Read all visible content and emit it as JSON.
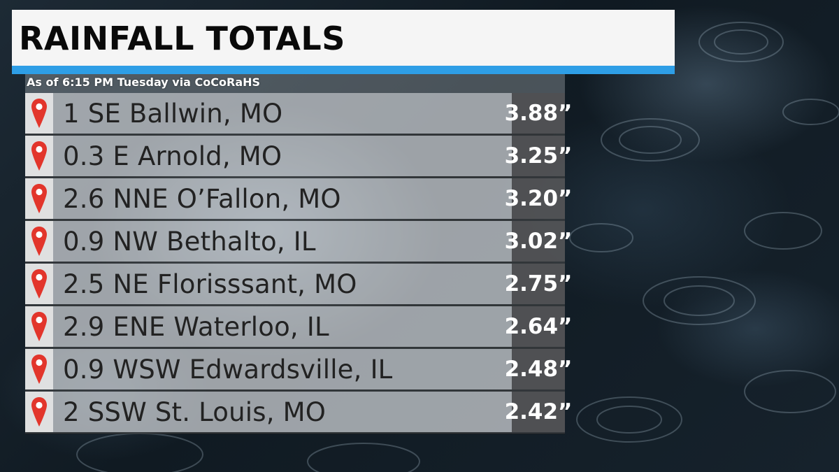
{
  "header": {
    "title": "RAINFALL TOTALS",
    "accent_color": "#2e9ee6"
  },
  "subtitle": "As of 6:15 PM Tuesday via CoCoRaHS",
  "pin_icon": "map-pin-icon",
  "pin_color": "#e2352b",
  "rows": [
    {
      "location": "1 SE Ballwin, MO",
      "amount": "3.88”"
    },
    {
      "location": "0.3 E Arnold, MO",
      "amount": "3.25”"
    },
    {
      "location": "2.6 NNE O’Fallon, MO",
      "amount": "3.20”"
    },
    {
      "location": "0.9 NW Bethalto, IL",
      "amount": "3.02”"
    },
    {
      "location": "2.5 NE Florisssant, MO",
      "amount": "2.75”"
    },
    {
      "location": "2.9 ENE Waterloo, IL",
      "amount": "2.64”"
    },
    {
      "location": "0.9 WSW Edwardsville, IL",
      "amount": "2.48”"
    },
    {
      "location": "2 SSW St. Louis, MO",
      "amount": "2.42”"
    }
  ]
}
